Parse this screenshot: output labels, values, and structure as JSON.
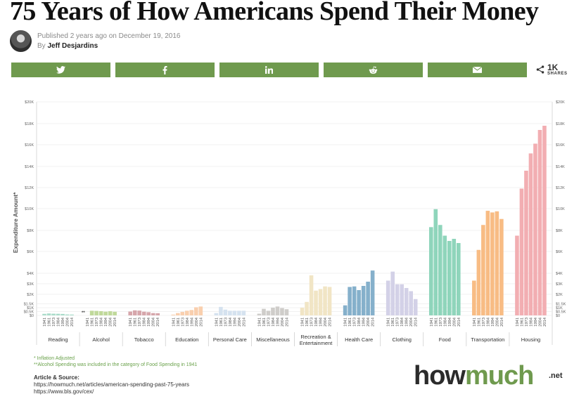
{
  "page": {
    "title": "75 Years of How Americans Spend Their Money",
    "published": "Published 2 years ago on December 19, 2016",
    "by_prefix": "By",
    "author": "Jeff Desjardins"
  },
  "share": {
    "buttons": [
      {
        "name": "twitter",
        "icon": "twitter-icon"
      },
      {
        "name": "facebook",
        "icon": "facebook-icon"
      },
      {
        "name": "linkedin",
        "icon": "linkedin-icon"
      },
      {
        "name": "reddit",
        "icon": "reddit-icon"
      },
      {
        "name": "email",
        "icon": "email-icon"
      }
    ],
    "count": "1K",
    "count_label": "SHARES",
    "button_color": "#6f9a4e"
  },
  "chart_data": {
    "type": "bar",
    "title": "",
    "xlabel": "",
    "ylabel": "Expenditure Amount*",
    "ylim": [
      0,
      20000
    ],
    "y_ticks": [
      {
        "value": 0,
        "label": "$0"
      },
      {
        "value": 500,
        "label": "$0.5K"
      },
      {
        "value": 1000,
        "label": "$1K"
      },
      {
        "value": 1500,
        "label": "$1.5K"
      },
      {
        "value": 2000,
        "label": "$2K"
      },
      {
        "value": 3000,
        "label": "$3K"
      },
      {
        "value": 4000,
        "label": "$4K"
      },
      {
        "value": 6000,
        "label": "$6K"
      },
      {
        "value": 8000,
        "label": "$8K"
      },
      {
        "value": 10000,
        "label": "$10K"
      },
      {
        "value": 12000,
        "label": "$12K"
      },
      {
        "value": 14000,
        "label": "$14K"
      },
      {
        "value": 16000,
        "label": "$16K"
      },
      {
        "value": 18000,
        "label": "$18K"
      },
      {
        "value": 20000,
        "label": "$20K"
      }
    ],
    "years": [
      "1941",
      "1961",
      "1973",
      "1984",
      "1994",
      "2004",
      "2014"
    ],
    "grid": true,
    "groups": [
      {
        "name": "Reading",
        "color": "#a9dcc9",
        "values": [
          200,
          250,
          220,
          210,
          190,
          120,
          110
        ]
      },
      {
        "name": "Alcohol",
        "color": "#c0d99a",
        "note_marker": "**",
        "values": [
          null,
          600,
          580,
          550,
          480,
          540,
          470
        ]
      },
      {
        "name": "Tobacco",
        "color": "#d6a6ab",
        "values": [
          500,
          650,
          620,
          480,
          420,
          300,
          280
        ]
      },
      {
        "name": "Education",
        "color": "#f9cfae",
        "values": [
          100,
          300,
          450,
          600,
          700,
          1050,
          1150
        ]
      },
      {
        "name": "Personal Care",
        "color": "#d5e2ef",
        "values": [
          300,
          1100,
          750,
          600,
          600,
          600,
          600
        ]
      },
      {
        "name": "Miscellaneous",
        "color": "#cfcdca",
        "values": [
          220,
          850,
          600,
          1000,
          1150,
          950,
          800
        ]
      },
      {
        "name": "Recreation & Entertainment",
        "color": "#f1e5c5",
        "values": [
          1000,
          1600,
          3800,
          2350,
          2500,
          2750,
          2700
        ]
      },
      {
        "name": "Health Care",
        "color": "#85b0cb",
        "values": [
          1300,
          2700,
          2750,
          2400,
          2800,
          3200,
          4250
        ]
      },
      {
        "name": "Clothing",
        "color": "#d3d1e7",
        "values": [
          3300,
          4150,
          2950,
          2950,
          2600,
          2300,
          1750
        ]
      },
      {
        "name": "Food",
        "color": "#8fd5bb",
        "values": [
          8300,
          9950,
          8500,
          7500,
          7000,
          7200,
          6800
        ]
      },
      {
        "name": "Transportation",
        "color": "#f8bc84",
        "values": [
          3300,
          6150,
          8500,
          9800,
          9650,
          9750,
          9050
        ]
      },
      {
        "name": "Housing",
        "color": "#f2aeb2",
        "values": [
          7500,
          11900,
          13600,
          15200,
          16100,
          17400,
          17800
        ]
      }
    ]
  },
  "notes": {
    "inflation": "* Inflation Adjusted",
    "alcohol": "**Alcohol Spending was included in the category of Food Spending in 1941"
  },
  "source": {
    "heading": "Article & Source:",
    "links": [
      "https://howmuch.net/articles/american-spending-past-75-years",
      "https://www.bls.gov/cex/"
    ]
  },
  "logo": {
    "how": "how",
    "much": "much",
    "net": ".net"
  }
}
